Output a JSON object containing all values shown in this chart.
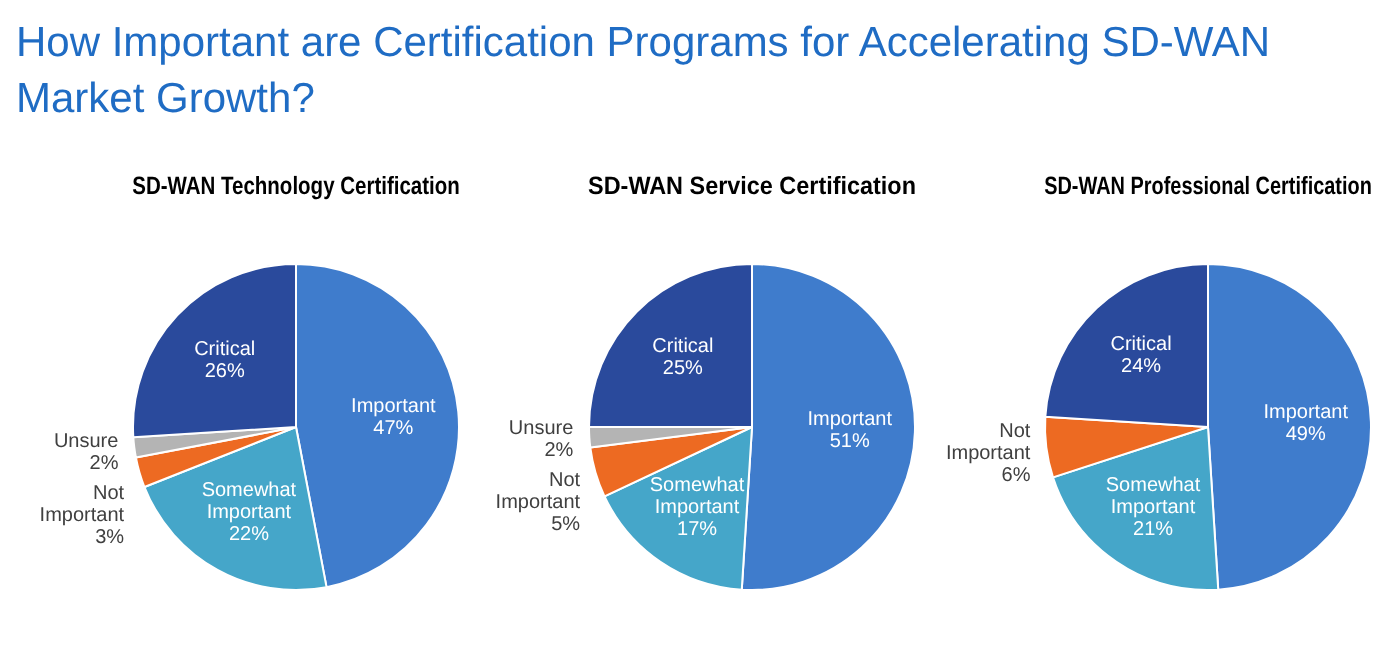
{
  "chart_data": [
    {
      "type": "other",
      "title": "How Important are Certification Programs for Accelerating SD-WAN Market Growth?"
    },
    {
      "type": "pie",
      "title": "SD-WAN Technology Certification",
      "categories": [
        "Important",
        "Somewhat Important",
        "Not Important",
        "Unsure",
        "Critical"
      ],
      "values": [
        47,
        22,
        3,
        2,
        26
      ],
      "value_labels": [
        "47%",
        "22%",
        "3%",
        "2%",
        "26%"
      ],
      "colors": [
        "#3f7ccc",
        "#45a6c9",
        "#ed6a22",
        "#b4b4b4",
        "#2a4a9c"
      ],
      "legend": false
    },
    {
      "type": "pie",
      "title": "SD-WAN Service Certification",
      "categories": [
        "Important",
        "Somewhat Important",
        "Not Important",
        "Unsure",
        "Critical"
      ],
      "values": [
        51,
        17,
        5,
        2,
        25
      ],
      "value_labels": [
        "51%",
        "17%",
        "5%",
        "2%",
        "25%"
      ],
      "colors": [
        "#3f7ccc",
        "#45a6c9",
        "#ed6a22",
        "#b4b4b4",
        "#2a4a9c"
      ],
      "legend": false
    },
    {
      "type": "pie",
      "title": "SD-WAN Professional Certification",
      "categories": [
        "Important",
        "Somewhat Important",
        "Not Important",
        "Critical"
      ],
      "values": [
        49,
        21,
        6,
        24
      ],
      "value_labels": [
        "49%",
        "21%",
        "6%",
        "24%"
      ],
      "colors": [
        "#3f7ccc",
        "#45a6c9",
        "#ed6a22",
        "#2a4a9c"
      ],
      "legend": false
    }
  ]
}
